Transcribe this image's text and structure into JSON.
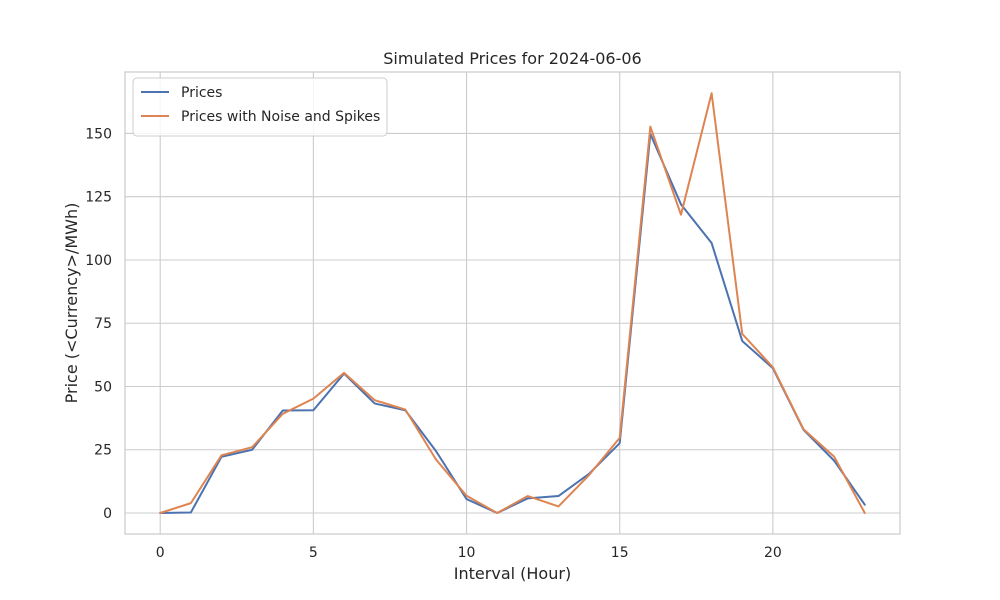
{
  "chart_data": {
    "type": "line",
    "title": "Simulated Prices for 2024-06-06",
    "xlabel": "Interval (Hour)",
    "ylabel": "Price (<Currency>/MWh)",
    "xlim": [
      -1.15,
      24.15
    ],
    "ylim": [
      -8.3,
      174.3
    ],
    "xticks": [
      0,
      5,
      10,
      15,
      20
    ],
    "yticks": [
      0,
      25,
      50,
      75,
      100,
      125,
      150
    ],
    "grid": true,
    "legend_position": "top-left",
    "x": [
      0,
      1,
      2,
      3,
      4,
      5,
      6,
      7,
      8,
      9,
      10,
      11,
      12,
      13,
      14,
      15,
      16,
      17,
      18,
      19,
      20,
      21,
      22,
      23
    ],
    "series": [
      {
        "name": "Prices",
        "color": "#4c72b0",
        "values": [
          0,
          0.2,
          22.2,
          25,
          40.5,
          40.6,
          55.1,
          43.3,
          40.6,
          24.5,
          5.5,
          0,
          5.8,
          6.7,
          15.5,
          27.6,
          149.8,
          122,
          106.7,
          68,
          57.2,
          32.9,
          20.7,
          3.3
        ]
      },
      {
        "name": "Prices with Noise and Spikes",
        "color": "#dd8452",
        "values": [
          0,
          3.9,
          22.8,
          26,
          39.2,
          45.2,
          55.4,
          44.6,
          40.9,
          21.2,
          6.8,
          0,
          6.7,
          2.6,
          15,
          29.7,
          152.7,
          117.9,
          165.9,
          70.8,
          57.6,
          33.1,
          22.3,
          0
        ]
      }
    ]
  }
}
